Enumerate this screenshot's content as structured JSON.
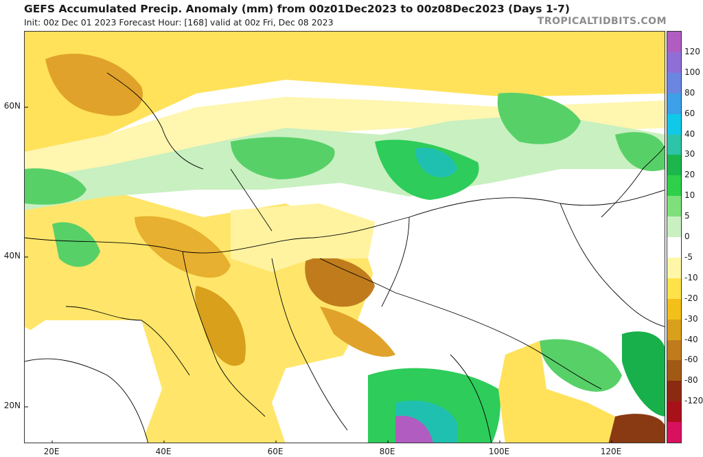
{
  "header": {
    "title": "GEFS Accumulated Precip. Anomaly (mm) from 00z01Dec2023 to 00z08Dec2023 (Days 1-7)",
    "subtitle": "Init: 00z Dec 01 2023   Forecast Hour: [168]   valid at 00z Fri, Dec 08 2023",
    "brand": "TROPICALTIDBITS.COM"
  },
  "axes": {
    "lat_labels": [
      "60N",
      "40N",
      "20N"
    ],
    "lon_labels": [
      "20E",
      "40E",
      "60E",
      "80E",
      "100E",
      "120E"
    ]
  },
  "colorbar": {
    "labels": [
      "120",
      "100",
      "80",
      "60",
      "40",
      "30",
      "20",
      "10",
      "5",
      "0",
      "-5",
      "-10",
      "-20",
      "-30",
      "-40",
      "-60",
      "-80",
      "-120"
    ],
    "colors": [
      "#b05cc0",
      "#8f6fd6",
      "#6a86e0",
      "#3ca0e8",
      "#10c8e8",
      "#2ec4a8",
      "#1cb64c",
      "#2ed04a",
      "#7ee07a",
      "#c8f0c0",
      "#ffffff",
      "#fff6a8",
      "#ffe24a",
      "#f2c018",
      "#d9a01c",
      "#c07c1c",
      "#a05a14",
      "#8a2a10",
      "#a8101a",
      "#d8105e"
    ]
  },
  "map_colors": {
    "dry_light": "#fff2a0",
    "dry": "#ffd84a",
    "dry_mid": "#f0bc2a",
    "dry_strong": "#cf9020",
    "dry_brown": "#9a5a16",
    "wet_light": "#c8f0c0",
    "wet": "#58d068",
    "wet_strong": "#18b04a",
    "wet_teal": "#20c0b0",
    "wet_cyan": "#10c8e8",
    "wet_purple": "#b05cc0",
    "border": "#000000"
  }
}
